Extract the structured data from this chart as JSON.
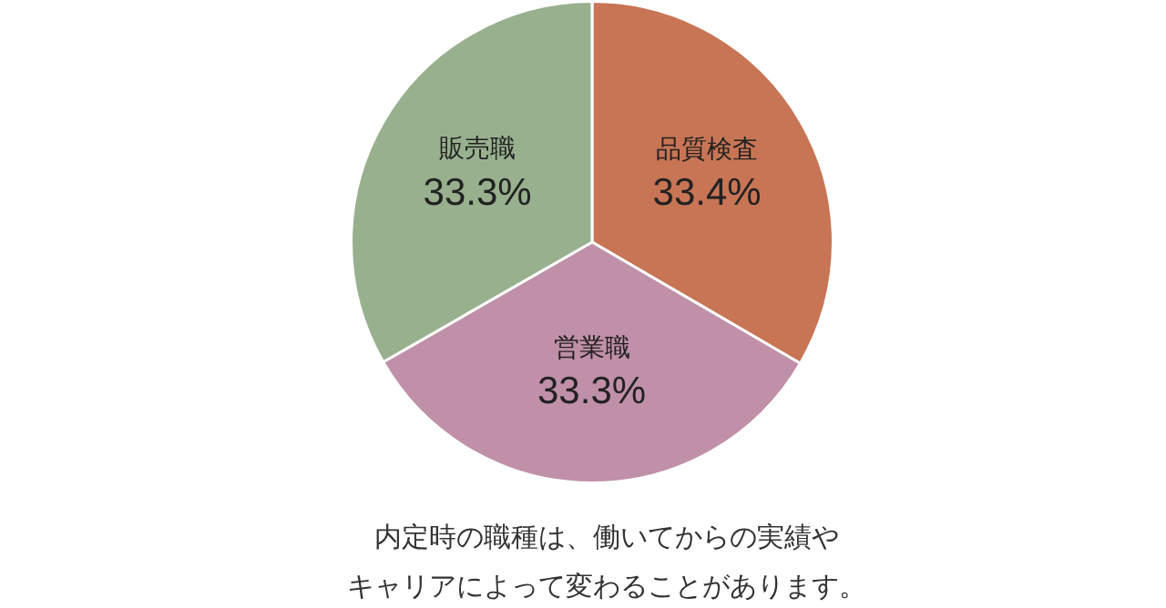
{
  "chart_data": {
    "type": "pie",
    "categories": [
      "品質検査",
      "営業職",
      "販売職"
    ],
    "values": [
      33.4,
      33.3,
      33.3
    ],
    "colors": [
      "#c87555",
      "#c090a8",
      "#98b08e"
    ],
    "value_labels": [
      "33.4%",
      "33.3%",
      "33.3%"
    ],
    "legend": false,
    "annotations": [
      "内定時の職種は、働いてからの実績や",
      "キャリアによって変わることがあります。"
    ]
  }
}
